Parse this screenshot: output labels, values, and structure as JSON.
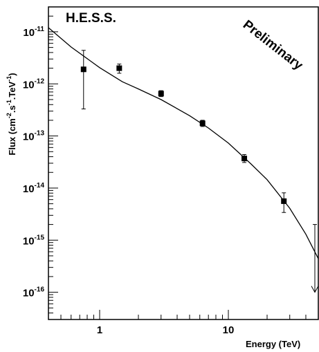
{
  "chart_data": {
    "type": "scatter",
    "title": "",
    "annotations": {
      "experiment": "H.E.S.S.",
      "status": "Preliminary"
    },
    "xlabel": "Energy (TeV)",
    "ylabel": {
      "prefix": "Flux (cm",
      "e1": "-2",
      "mid1": ".s",
      "e2": "-1",
      "mid2": ".TeV",
      "e3": "-1",
      "suffix": ")"
    },
    "xscale": "log",
    "yscale": "log",
    "xlim": [
      0.4,
      50
    ],
    "ylim": [
      3e-17,
      3e-11
    ],
    "x_ticks": [
      {
        "value": 1,
        "label": "1"
      },
      {
        "value": 10,
        "label": "10"
      }
    ],
    "y_ticks": [
      {
        "value": 1e-11,
        "exp": "-11"
      },
      {
        "value": 1e-12,
        "exp": "-12"
      },
      {
        "value": 1e-13,
        "exp": "-13"
      },
      {
        "value": 1e-14,
        "exp": "-14"
      },
      {
        "value": 1e-15,
        "exp": "-15"
      },
      {
        "value": 1e-16,
        "exp": "-16"
      }
    ],
    "y_tick_base": "10",
    "points": [
      {
        "x": 0.75,
        "y": 1.9e-12,
        "y_low": 3.3e-13,
        "y_high": 4.4e-12
      },
      {
        "x": 1.42,
        "y": 2e-12,
        "y_low": 1.6e-12,
        "y_high": 2.4e-12
      },
      {
        "x": 3.0,
        "y": 6.5e-13,
        "y_low": 5.7e-13,
        "y_high": 7.4e-13
      },
      {
        "x": 6.3,
        "y": 1.75e-13,
        "y_low": 1.52e-13,
        "y_high": 2e-13
      },
      {
        "x": 13.3,
        "y": 3.7e-14,
        "y_low": 3.1e-14,
        "y_high": 4.4e-14
      },
      {
        "x": 27.0,
        "y": 5.6e-15,
        "y_low": 3.4e-15,
        "y_high": 8.1e-15
      }
    ],
    "upper_limit": {
      "x": 47.0,
      "y_high": 2e-15,
      "y_low": 1e-16
    },
    "fit_curve": {
      "x": [
        0.4,
        0.6,
        1.0,
        1.5,
        2.0,
        3.0,
        5.0,
        7.0,
        10.0,
        15.0,
        20.0,
        30.0,
        40.0,
        50.0
      ],
      "y": [
        1.2e-11,
        5.1e-12,
        2.05e-12,
        1.1e-12,
        8e-13,
        5e-13,
        2.45e-13,
        1.42e-13,
        7.3e-14,
        2.9e-14,
        1.45e-14,
        4.1e-15,
        1.3e-15,
        4.4e-16
      ]
    }
  }
}
